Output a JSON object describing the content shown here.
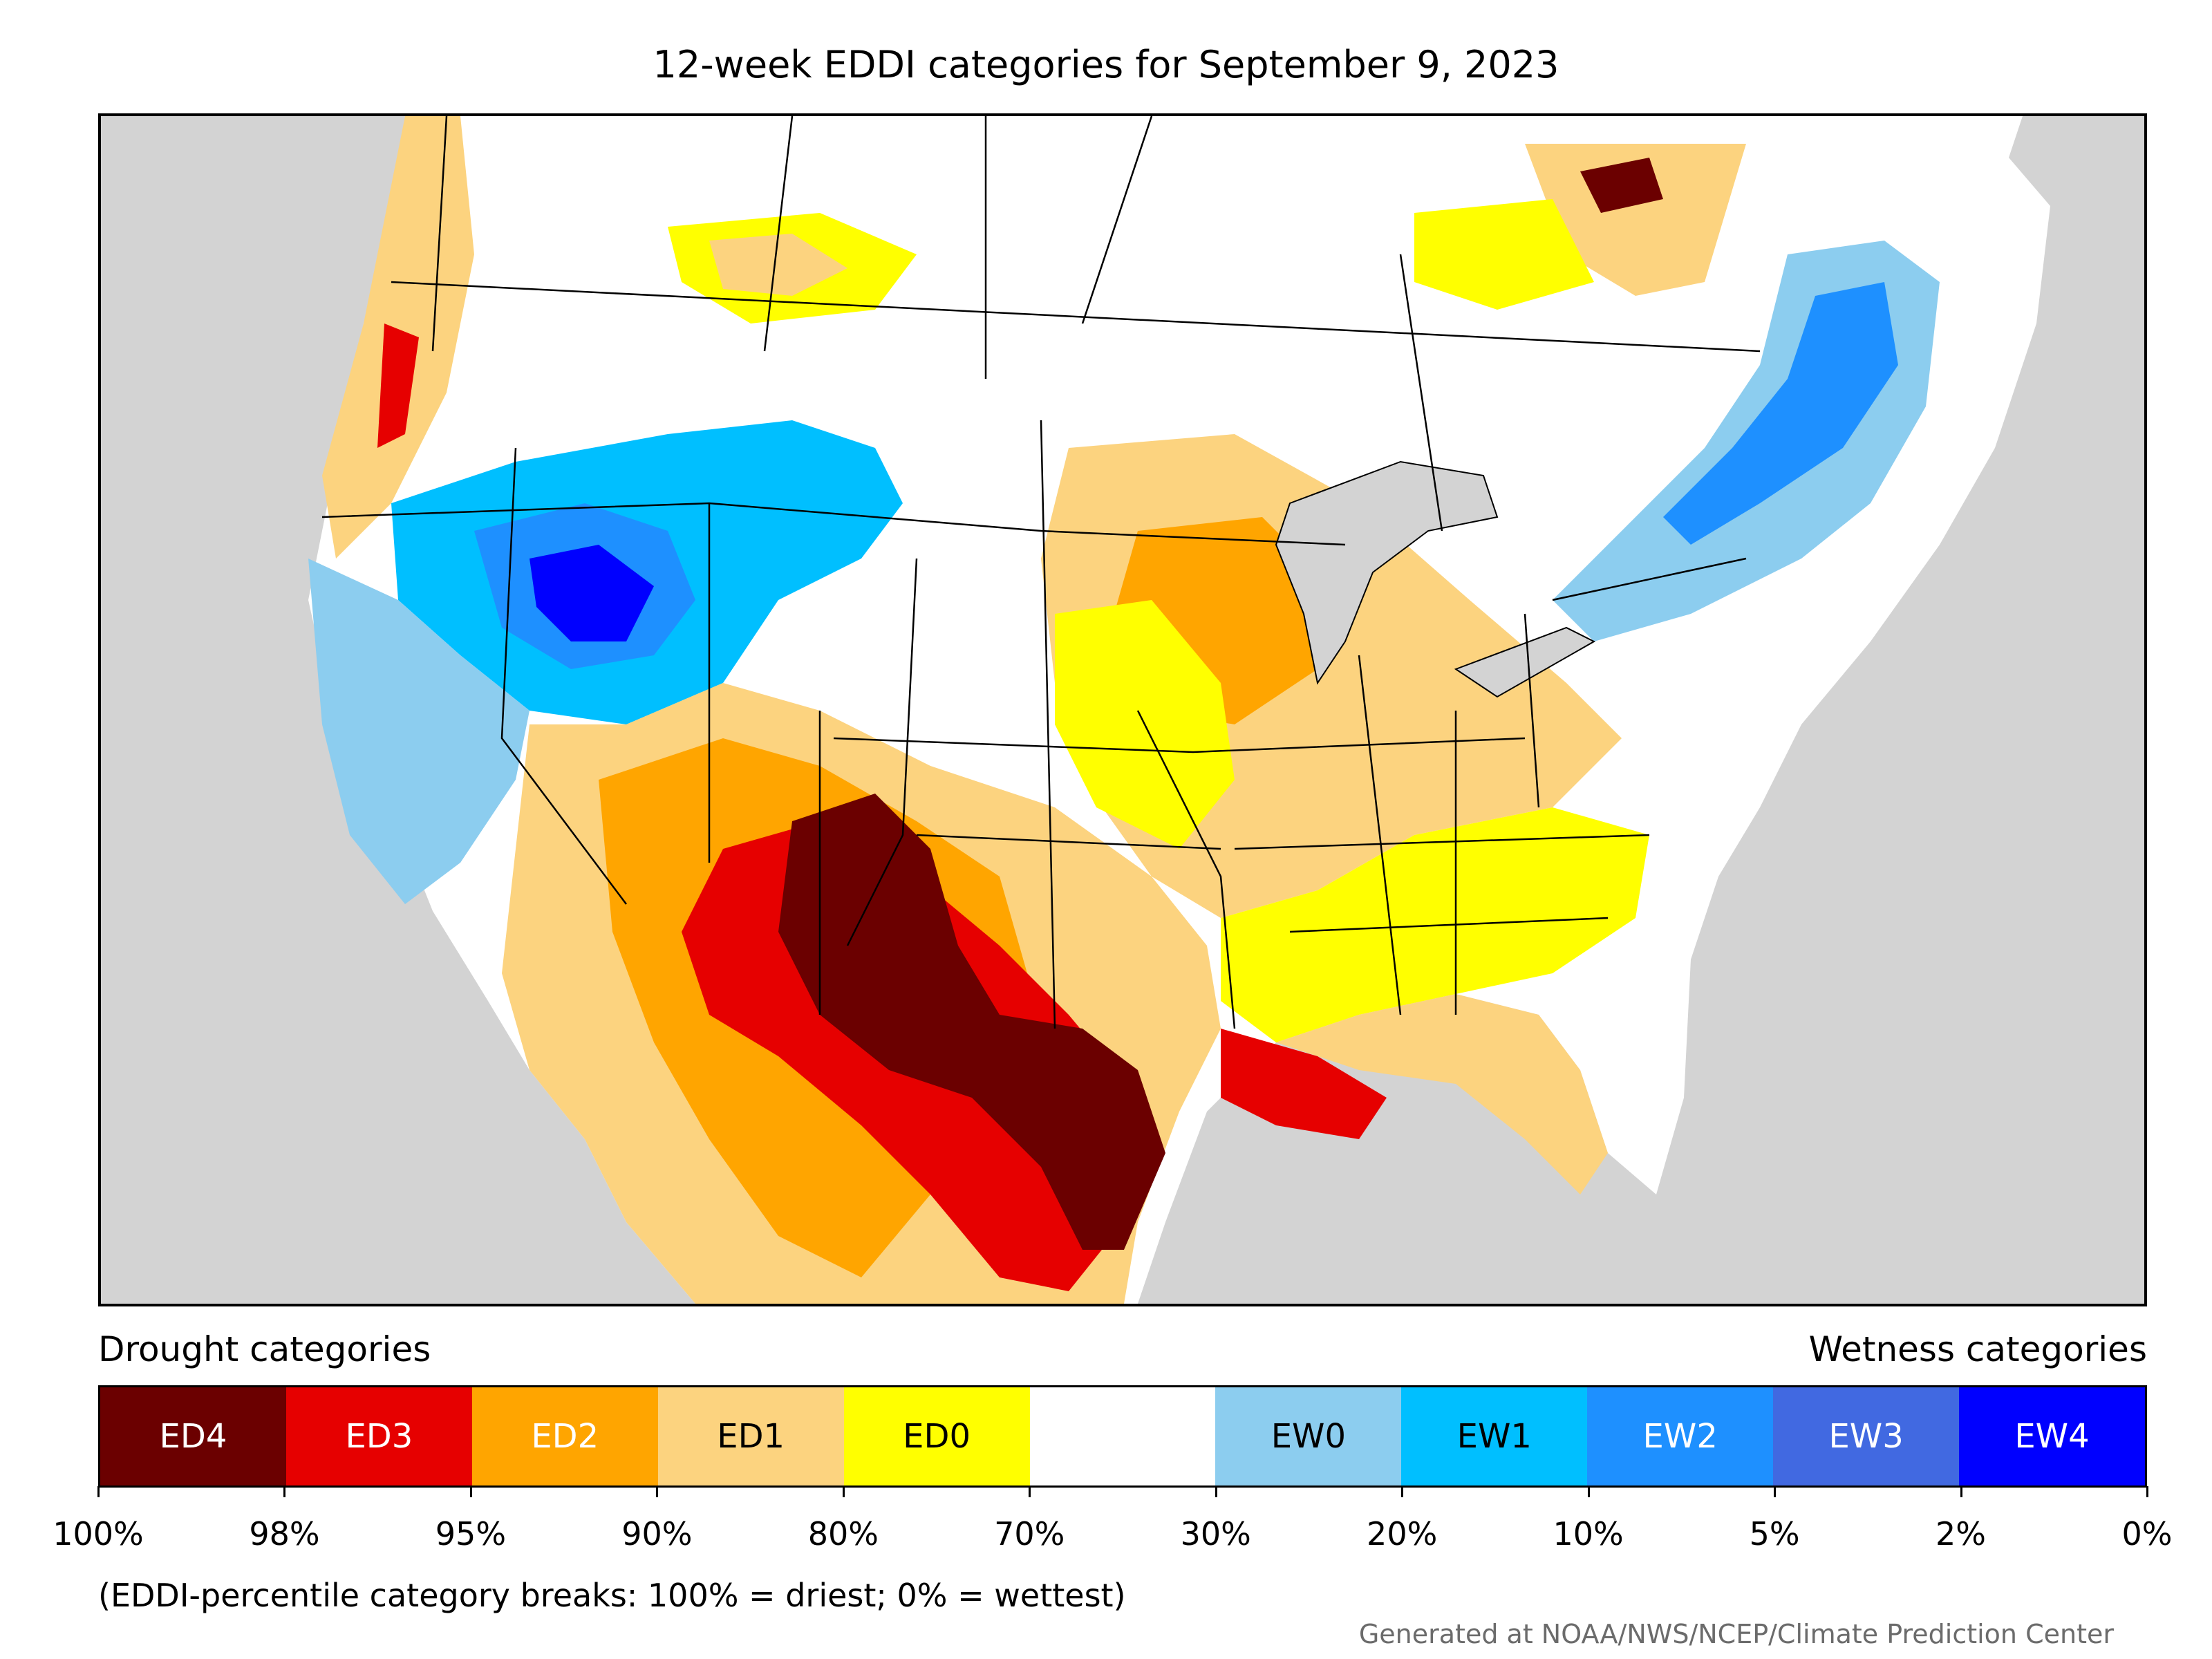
{
  "title": "12-week EDDI categories for September 9, 2023",
  "drought_header": "Drought categories",
  "wetness_header": "Wetness categories",
  "legend": {
    "categories": [
      {
        "label": "ED4",
        "color": "#6b0000",
        "text_color": "#ffffff"
      },
      {
        "label": "ED3",
        "color": "#e60000",
        "text_color": "#ffffff"
      },
      {
        "label": "ED2",
        "color": "#ffa500",
        "text_color": "#ffffff"
      },
      {
        "label": "ED1",
        "color": "#fcd37f",
        "text_color": "#000000"
      },
      {
        "label": "ED0",
        "color": "#ffff00",
        "text_color": "#000000"
      },
      {
        "label": "",
        "color": "#ffffff",
        "text_color": "#000000"
      },
      {
        "label": "EW0",
        "color": "#8ccdef",
        "text_color": "#000000"
      },
      {
        "label": "EW1",
        "color": "#00bfff",
        "text_color": "#000000"
      },
      {
        "label": "EW2",
        "color": "#1e90ff",
        "text_color": "#ffffff"
      },
      {
        "label": "EW3",
        "color": "#4169e1",
        "text_color": "#ffffff"
      },
      {
        "label": "EW4",
        "color": "#0000ff",
        "text_color": "#ffffff"
      }
    ],
    "breaks": [
      "100%",
      "98%",
      "95%",
      "90%",
      "80%",
      "70%",
      "30%",
      "20%",
      "10%",
      "5%",
      "2%",
      "0%"
    ]
  },
  "note": "(EDDI-percentile category breaks: 100% = driest; 0% = wettest)",
  "credit": "Generated at NOAA/NWS/NCEP/Climate Prediction Center"
}
